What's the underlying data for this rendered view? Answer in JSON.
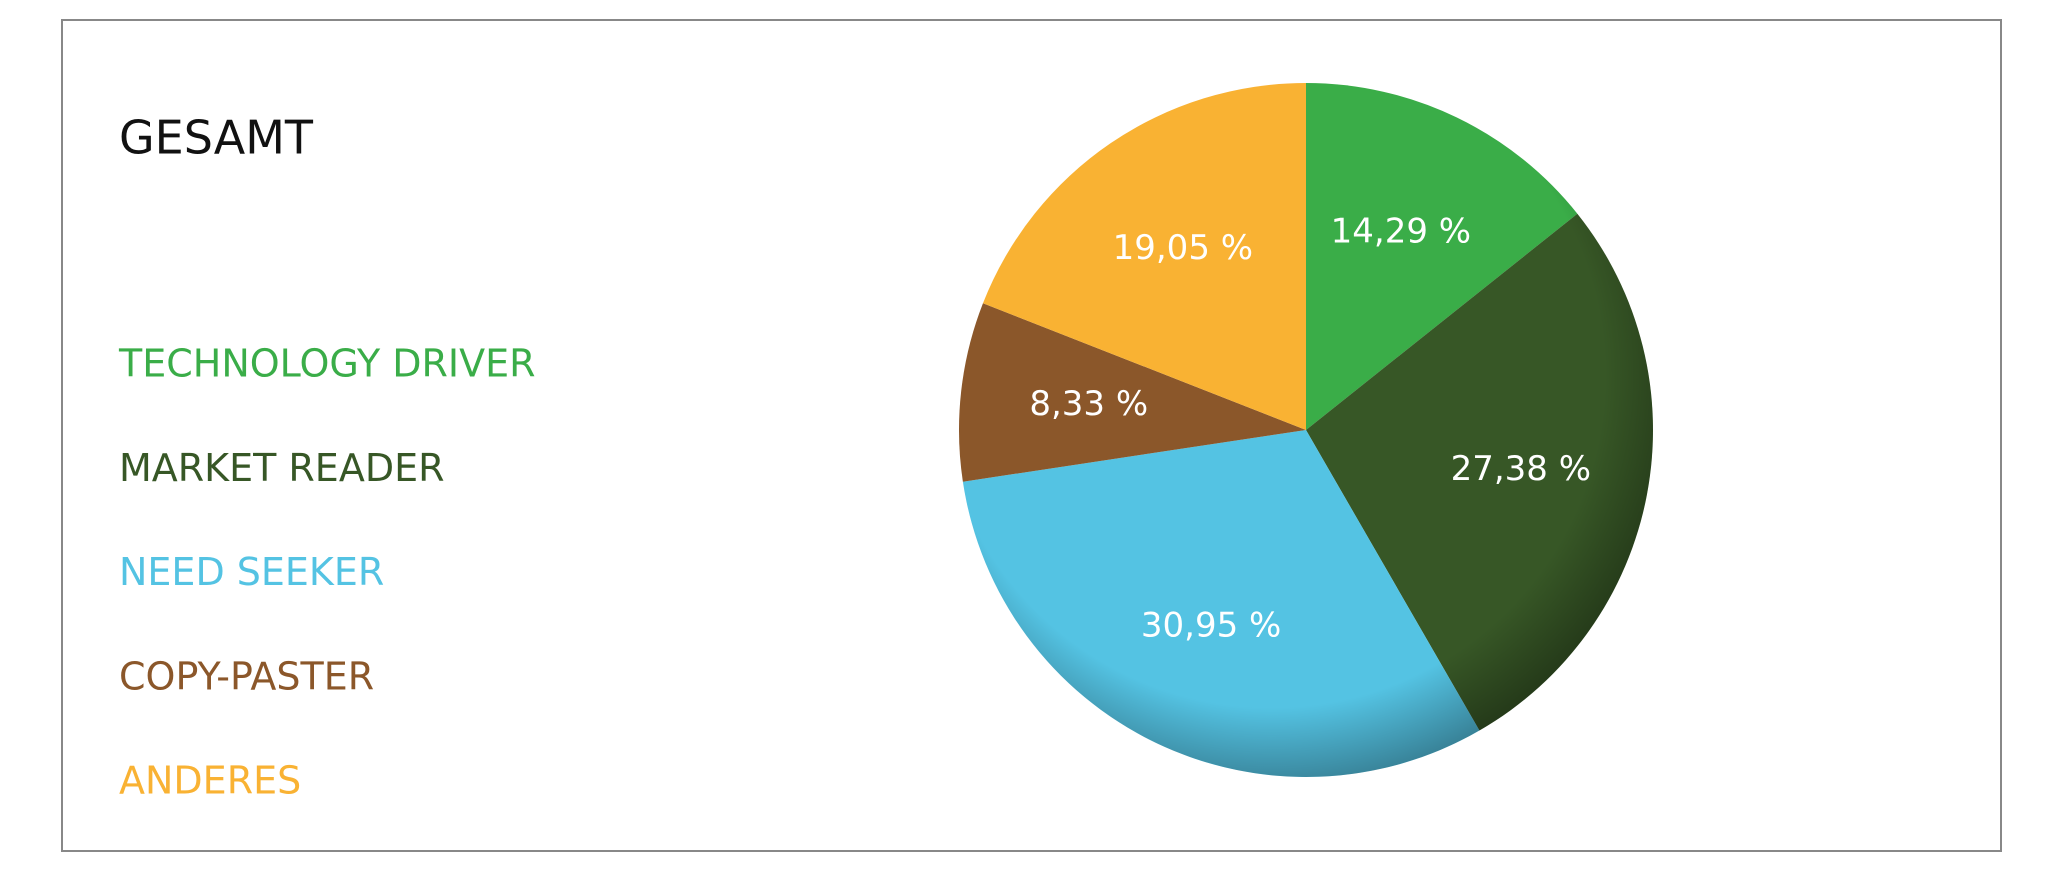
{
  "chart_data": {
    "type": "pie",
    "title": "GESAMT",
    "categories": [
      "TECHNOLOGY DRIVER",
      "MARKET READER",
      "NEED SEEKER",
      "COPY-PASTER",
      "ANDERES"
    ],
    "values": [
      14.29,
      27.38,
      30.95,
      8.33,
      19.05
    ],
    "value_labels": [
      "14,29 %",
      "27,38 %",
      "30,95 %",
      "8,33 %",
      "19,05 %"
    ],
    "colors": [
      "#3aad48",
      "#375726",
      "#54c3e3",
      "#8b572a",
      "#f9b233"
    ]
  }
}
